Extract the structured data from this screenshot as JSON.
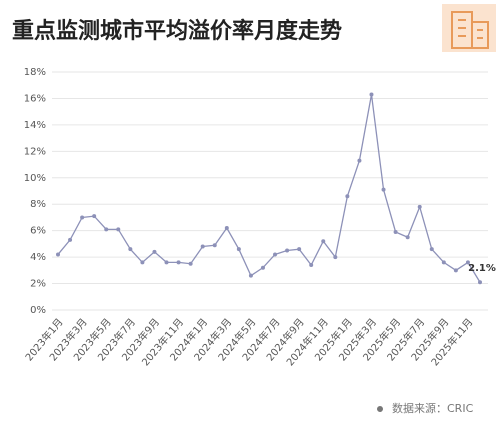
{
  "chart_data": {
    "type": "line",
    "title": "重点监测城市平均溢价率月度走势",
    "source": "数据来源：CRIC",
    "categories": [
      "2023年1月",
      null,
      "2023年3月",
      null,
      "2023年5月",
      null,
      "2023年7月",
      null,
      "2023年9月",
      null,
      "2023年11月",
      null,
      "2024年1月",
      null,
      "2024年3月",
      null,
      "2024年5月",
      null,
      "2024年7月",
      null,
      "2024年9月",
      null,
      "2024年11月",
      null,
      "2025年1月",
      null,
      "2025年3月",
      null,
      "2025年5月",
      null,
      "2025年7月",
      null,
      "2025年9月",
      null,
      "2025年11月",
      null
    ],
    "series": [
      {
        "color": "#8d91b8",
        "values": [
          4.2,
          5.3,
          7.0,
          7.1,
          6.1,
          6.1,
          4.6,
          3.6,
          4.4,
          3.6,
          3.6,
          3.5,
          4.8,
          4.9,
          6.2,
          4.6,
          2.6,
          3.2,
          4.2,
          4.5,
          4.6,
          3.4,
          5.2,
          4.0,
          8.6,
          11.3,
          16.3,
          9.1,
          5.9,
          5.5,
          7.8,
          4.6,
          3.6,
          3.0,
          3.6,
          2.1
        ],
        "value_labels": [
          null,
          null,
          null,
          null,
          null,
          null,
          null,
          null,
          null,
          null,
          null,
          null,
          null,
          null,
          null,
          null,
          null,
          null,
          null,
          null,
          null,
          null,
          null,
          null,
          null,
          null,
          null,
          null,
          null,
          null,
          null,
          null,
          null,
          null,
          null,
          "2.1%"
        ]
      }
    ],
    "ylim": [
      0,
      18
    ],
    "yticks": [
      {
        "value": 0,
        "label": "0%"
      },
      {
        "value": 2,
        "label": "2%"
      },
      {
        "value": 4,
        "label": "4%"
      },
      {
        "value": 6,
        "label": "6%"
      },
      {
        "value": 8,
        "label": "8%"
      },
      {
        "value": 10,
        "label": "10%"
      },
      {
        "value": 12,
        "label": "12%"
      },
      {
        "value": 14,
        "label": "14%"
      },
      {
        "value": 16,
        "label": "16%"
      },
      {
        "value": 18,
        "label": "18%"
      }
    ],
    "grid": true
  }
}
